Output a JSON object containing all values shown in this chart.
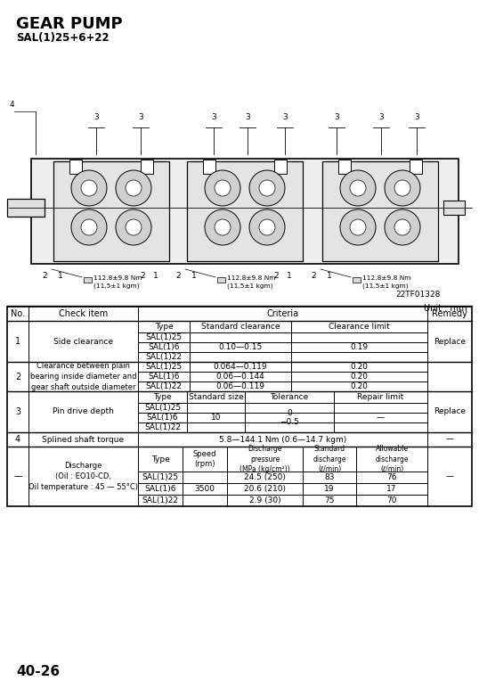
{
  "title": "GEAR PUMP",
  "subtitle": "SAL(1)25+6+22",
  "page_number": "40-26",
  "figure_ref": "22TF01328",
  "unit_label": "Unit : mm",
  "bg_color": "#ffffff",
  "torque_note": "112.8±9.8 Nm\n(11.5±1 kgm)",
  "rows": [
    {
      "no": "1",
      "item": "Side clearance",
      "sub_header": [
        "Type",
        "Standard clearance",
        "Clearance limit"
      ],
      "sub_rows": [
        [
          "SAL(1)25",
          "",
          ""
        ],
        [
          "SAL(1)6",
          "0.10—0.15",
          "0.19"
        ],
        [
          "SAL(1)22",
          "",
          ""
        ]
      ],
      "remedy": "Replace"
    },
    {
      "no": "2",
      "item": "Clearance between plain\nbearing inside diameter and\ngear shaft outside diameter",
      "sub_header": null,
      "sub_rows": [
        [
          "SAL(1)25",
          "0.064—0.119",
          "0.20"
        ],
        [
          "SAL(1)6",
          "0.06—0.144",
          "0.20"
        ],
        [
          "SAL(1)22",
          "0.06—0.119",
          "0.20"
        ]
      ],
      "remedy": ""
    },
    {
      "no": "3",
      "item": "Pin drive depth",
      "sub_header": [
        "Type",
        "Standard size",
        "Tolerance",
        "Repair limit"
      ],
      "sub_rows": [
        [
          "SAL(1)25",
          "",
          "",
          ""
        ],
        [
          "SAL(1)6",
          "10",
          "0\n−0.5",
          "—"
        ],
        [
          "SAL(1)22",
          "",
          "",
          ""
        ]
      ],
      "remedy": "Replace"
    },
    {
      "no": "4",
      "item": "Splined shaft torque",
      "criteria_span": "5.8—144.1 Nm (0.6—14.7 kgm)",
      "remedy": "—"
    },
    {
      "no": "—",
      "item": "Discharge\n(Oil : EO10-CD,\nOil temperature : 45 — 55°C)",
      "sub_header": [
        "Type",
        "Speed\n(rpm)",
        "Discharge\npressure\n(MPa (kg/cm²))",
        "Standard\ndischarge\n(ℓ/min)",
        "Allowable\ndischarge\n(ℓ/min)"
      ],
      "sub_rows": [
        [
          "SAL(1)25",
          "",
          "24.5 (250)",
          "83",
          "76"
        ],
        [
          "SAL(1)6",
          "3500",
          "20.6 (210)",
          "19",
          "17"
        ],
        [
          "SAL(1)22",
          "",
          "2.9 (30)",
          "75",
          "70"
        ]
      ],
      "remedy": "—"
    }
  ]
}
